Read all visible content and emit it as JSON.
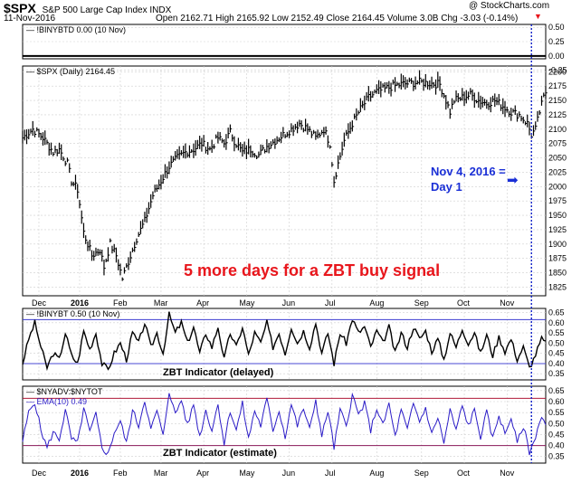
{
  "header": {
    "symbol": "$SPX",
    "name": "S&P 500 Large Cap Index  INDX",
    "date": "11-Nov-2016",
    "ohlc": "Open 2162.71  High 2165.92  Low 2152.49  Close 2164.45  Volume 3.0B  Chg -3.03 (-0.14%)",
    "watermark": "@ StockCharts.com"
  },
  "colors": {
    "price": "#000000",
    "ema_line": "#2b1cc7",
    "red_text": "#e8161c",
    "blue_text": "#1a2fd6",
    "threshold_high": "#3b3bd1",
    "threshold_low": "#4a4ad6",
    "estimate_high": "#b01a3a",
    "estimate_low": "#8a1a5a",
    "marker_line": "#1020c8",
    "grid": "#cfcfcf"
  },
  "chart_data": [
    {
      "type": "line",
      "panel": "top",
      "legend": "!BINYBTD 0.00 (10 Nov)",
      "ylim": [
        -0.05,
        0.55
      ],
      "yticks": [
        "0.50",
        "0.25",
        "0.00",
        "-0.25"
      ],
      "values": [
        0.0
      ]
    },
    {
      "type": "line",
      "panel": "price",
      "legend": "$SPX (Daily) 2164.45",
      "ylim": [
        1810,
        2210
      ],
      "yticks": [
        "2200",
        "2175",
        "2150",
        "2125",
        "2100",
        "2075",
        "2050",
        "2025",
        "2000",
        "1975",
        "1950",
        "1925",
        "1900",
        "1875",
        "1850",
        "1825"
      ],
      "x_months": [
        "Dec",
        "2016",
        "Feb",
        "Mar",
        "Apr",
        "May",
        "Jun",
        "Jul",
        "Aug",
        "Sep",
        "Oct",
        "Nov"
      ],
      "anchors": [
        [
          0,
          2085
        ],
        [
          5,
          2100
        ],
        [
          10,
          2085
        ],
        [
          15,
          2060
        ],
        [
          18,
          2065
        ],
        [
          22,
          2040
        ],
        [
          24,
          2010
        ],
        [
          27,
          1995
        ],
        [
          30,
          1920
        ],
        [
          34,
          1880
        ],
        [
          38,
          1890
        ],
        [
          40,
          1860
        ],
        [
          43,
          1900
        ],
        [
          46,
          1880
        ],
        [
          49,
          1840
        ],
        [
          52,
          1870
        ],
        [
          56,
          1910
        ],
        [
          60,
          1940
        ],
        [
          64,
          1985
        ],
        [
          68,
          2010
        ],
        [
          72,
          2035
        ],
        [
          76,
          2050
        ],
        [
          80,
          2060
        ],
        [
          84,
          2065
        ],
        [
          88,
          2075
        ],
        [
          92,
          2065
        ],
        [
          96,
          2085
        ],
        [
          99,
          2075
        ],
        [
          102,
          2095
        ],
        [
          104,
          2080
        ],
        [
          108,
          2060
        ],
        [
          112,
          2065
        ],
        [
          116,
          2055
        ],
        [
          120,
          2070
        ],
        [
          124,
          2080
        ],
        [
          128,
          2090
        ],
        [
          132,
          2100
        ],
        [
          136,
          2110
        ],
        [
          140,
          2100
        ],
        [
          144,
          2085
        ],
        [
          148,
          2100
        ],
        [
          151,
          2075
        ],
        [
          153,
          2010
        ],
        [
          155,
          2040
        ],
        [
          158,
          2080
        ],
        [
          162,
          2110
        ],
        [
          166,
          2135
        ],
        [
          170,
          2155
        ],
        [
          174,
          2165
        ],
        [
          178,
          2170
        ],
        [
          182,
          2175
        ],
        [
          186,
          2178
        ],
        [
          190,
          2180
        ],
        [
          195,
          2182
        ],
        [
          200,
          2180
        ],
        [
          205,
          2178
        ],
        [
          208,
          2150
        ],
        [
          210,
          2130
        ],
        [
          212,
          2150
        ],
        [
          216,
          2155
        ],
        [
          220,
          2160
        ],
        [
          224,
          2150
        ],
        [
          228,
          2145
        ],
        [
          232,
          2150
        ],
        [
          236,
          2140
        ],
        [
          240,
          2130
        ],
        [
          244,
          2125
        ],
        [
          248,
          2110
        ],
        [
          250,
          2090
        ],
        [
          252,
          2100
        ],
        [
          254,
          2130
        ],
        [
          256,
          2155
        ],
        [
          257,
          2164.45
        ]
      ],
      "annotations": [
        "Nov 4, 2016 =",
        "Day 1",
        "5 more days for a ZBT buy signal"
      ],
      "annotation_arrow": "➡"
    },
    {
      "type": "line",
      "panel": "zbt_delayed",
      "legend": "!BINYBT 0.50 (10 Nov)",
      "ylim": [
        0.32,
        0.67
      ],
      "yticks": [
        "0.65",
        "0.60",
        "0.55",
        "0.50",
        "0.45",
        "0.40",
        "0.35"
      ],
      "thresholds": [
        0.615,
        0.4
      ],
      "caption": "ZBT Indicator (delayed)",
      "x_months": [
        "Dec",
        "2016",
        "Feb",
        "Mar",
        "Apr",
        "May",
        "Jun",
        "Jul",
        "Aug",
        "Sep",
        "Oct",
        "Nov"
      ],
      "anchors": [
        [
          0,
          0.4
        ],
        [
          3,
          0.52
        ],
        [
          6,
          0.6
        ],
        [
          9,
          0.48
        ],
        [
          12,
          0.38
        ],
        [
          15,
          0.45
        ],
        [
          18,
          0.42
        ],
        [
          21,
          0.55
        ],
        [
          24,
          0.44
        ],
        [
          27,
          0.4
        ],
        [
          30,
          0.56
        ],
        [
          33,
          0.47
        ],
        [
          36,
          0.55
        ],
        [
          39,
          0.4
        ],
        [
          42,
          0.37
        ],
        [
          45,
          0.45
        ],
        [
          48,
          0.5
        ],
        [
          51,
          0.42
        ],
        [
          54,
          0.55
        ],
        [
          57,
          0.5
        ],
        [
          60,
          0.6
        ],
        [
          63,
          0.48
        ],
        [
          66,
          0.55
        ],
        [
          69,
          0.45
        ],
        [
          72,
          0.64
        ],
        [
          75,
          0.55
        ],
        [
          78,
          0.6
        ],
        [
          81,
          0.5
        ],
        [
          84,
          0.58
        ],
        [
          87,
          0.45
        ],
        [
          90,
          0.55
        ],
        [
          93,
          0.48
        ],
        [
          96,
          0.58
        ],
        [
          99,
          0.42
        ],
        [
          102,
          0.55
        ],
        [
          105,
          0.48
        ],
        [
          108,
          0.58
        ],
        [
          111,
          0.44
        ],
        [
          114,
          0.55
        ],
        [
          117,
          0.5
        ],
        [
          120,
          0.6
        ],
        [
          123,
          0.48
        ],
        [
          126,
          0.55
        ],
        [
          129,
          0.45
        ],
        [
          132,
          0.58
        ],
        [
          135,
          0.5
        ],
        [
          138,
          0.56
        ],
        [
          141,
          0.48
        ],
        [
          144,
          0.6
        ],
        [
          147,
          0.45
        ],
        [
          150,
          0.55
        ],
        [
          153,
          0.4
        ],
        [
          156,
          0.55
        ],
        [
          159,
          0.5
        ],
        [
          162,
          0.62
        ],
        [
          165,
          0.55
        ],
        [
          168,
          0.58
        ],
        [
          171,
          0.48
        ],
        [
          174,
          0.56
        ],
        [
          177,
          0.5
        ],
        [
          180,
          0.58
        ],
        [
          183,
          0.45
        ],
        [
          186,
          0.55
        ],
        [
          189,
          0.48
        ],
        [
          192,
          0.58
        ],
        [
          195,
          0.52
        ],
        [
          198,
          0.56
        ],
        [
          201,
          0.46
        ],
        [
          204,
          0.52
        ],
        [
          207,
          0.42
        ],
        [
          210,
          0.55
        ],
        [
          213,
          0.48
        ],
        [
          216,
          0.57
        ],
        [
          219,
          0.5
        ],
        [
          222,
          0.55
        ],
        [
          225,
          0.45
        ],
        [
          228,
          0.54
        ],
        [
          231,
          0.44
        ],
        [
          234,
          0.53
        ],
        [
          237,
          0.46
        ],
        [
          240,
          0.52
        ],
        [
          243,
          0.42
        ],
        [
          246,
          0.48
        ],
        [
          249,
          0.38
        ],
        [
          251,
          0.42
        ],
        [
          253,
          0.47
        ],
        [
          255,
          0.52
        ],
        [
          257,
          0.5
        ]
      ]
    },
    {
      "type": "line",
      "panel": "zbt_estimate",
      "legend": "$NYADV:$NYTOT",
      "series_label": "EMA(10) 0.49",
      "ylim": [
        0.32,
        0.67
      ],
      "yticks": [
        "0.65",
        "0.60",
        "0.55",
        "0.50",
        "0.45",
        "0.40",
        "0.35"
      ],
      "thresholds": [
        0.615,
        0.4
      ],
      "caption": "ZBT Indicator (estimate)",
      "x_months": [
        "Dec",
        "2016",
        "Feb",
        "Mar",
        "Apr",
        "May",
        "Jun",
        "Jul",
        "Aug",
        "Sep",
        "Oct",
        "Nov"
      ],
      "anchors": [
        [
          0,
          0.42
        ],
        [
          3,
          0.55
        ],
        [
          6,
          0.6
        ],
        [
          9,
          0.47
        ],
        [
          12,
          0.39
        ],
        [
          15,
          0.46
        ],
        [
          18,
          0.43
        ],
        [
          21,
          0.56
        ],
        [
          24,
          0.43
        ],
        [
          27,
          0.41
        ],
        [
          30,
          0.57
        ],
        [
          33,
          0.46
        ],
        [
          36,
          0.54
        ],
        [
          39,
          0.39
        ],
        [
          42,
          0.36
        ],
        [
          45,
          0.46
        ],
        [
          48,
          0.51
        ],
        [
          51,
          0.41
        ],
        [
          54,
          0.56
        ],
        [
          57,
          0.49
        ],
        [
          60,
          0.61
        ],
        [
          63,
          0.47
        ],
        [
          66,
          0.56
        ],
        [
          69,
          0.44
        ],
        [
          72,
          0.65
        ],
        [
          75,
          0.54
        ],
        [
          78,
          0.61
        ],
        [
          81,
          0.49
        ],
        [
          84,
          0.59
        ],
        [
          87,
          0.44
        ],
        [
          90,
          0.56
        ],
        [
          93,
          0.47
        ],
        [
          96,
          0.59
        ],
        [
          99,
          0.41
        ],
        [
          102,
          0.56
        ],
        [
          105,
          0.47
        ],
        [
          108,
          0.59
        ],
        [
          111,
          0.43
        ],
        [
          114,
          0.56
        ],
        [
          117,
          0.49
        ],
        [
          120,
          0.61
        ],
        [
          123,
          0.47
        ],
        [
          126,
          0.56
        ],
        [
          129,
          0.44
        ],
        [
          132,
          0.59
        ],
        [
          135,
          0.49
        ],
        [
          138,
          0.57
        ],
        [
          141,
          0.47
        ],
        [
          144,
          0.61
        ],
        [
          147,
          0.44
        ],
        [
          150,
          0.56
        ],
        [
          153,
          0.39
        ],
        [
          156,
          0.56
        ],
        [
          159,
          0.49
        ],
        [
          162,
          0.63
        ],
        [
          165,
          0.54
        ],
        [
          168,
          0.59
        ],
        [
          171,
          0.47
        ],
        [
          174,
          0.57
        ],
        [
          177,
          0.49
        ],
        [
          180,
          0.59
        ],
        [
          183,
          0.44
        ],
        [
          186,
          0.56
        ],
        [
          189,
          0.47
        ],
        [
          192,
          0.59
        ],
        [
          195,
          0.51
        ],
        [
          198,
          0.57
        ],
        [
          201,
          0.45
        ],
        [
          204,
          0.53
        ],
        [
          207,
          0.41
        ],
        [
          210,
          0.56
        ],
        [
          213,
          0.47
        ],
        [
          216,
          0.58
        ],
        [
          219,
          0.49
        ],
        [
          222,
          0.56
        ],
        [
          225,
          0.44
        ],
        [
          228,
          0.55
        ],
        [
          231,
          0.43
        ],
        [
          234,
          0.54
        ],
        [
          237,
          0.45
        ],
        [
          240,
          0.53
        ],
        [
          243,
          0.41
        ],
        [
          246,
          0.49
        ],
        [
          249,
          0.37
        ],
        [
          251,
          0.41
        ],
        [
          253,
          0.48
        ],
        [
          255,
          0.53
        ],
        [
          257,
          0.49
        ]
      ]
    }
  ]
}
